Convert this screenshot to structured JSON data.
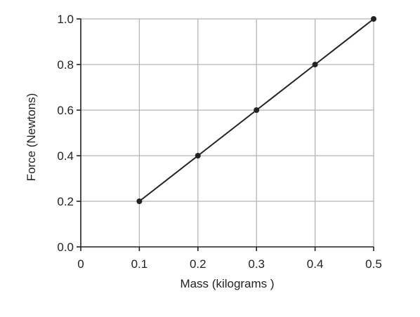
{
  "chart_data": {
    "type": "line",
    "title": "",
    "xlabel": "Mass (kilograms )",
    "ylabel": "Force (Newtons)",
    "xlim": [
      0,
      0.5
    ],
    "ylim": [
      0,
      1.0
    ],
    "x_ticks": [
      0,
      0.1,
      0.2,
      0.3,
      0.4,
      0.5
    ],
    "x_tick_labels": [
      "0",
      "0.1",
      "0.2",
      "0.3",
      "0.4",
      "0.5"
    ],
    "y_ticks": [
      0,
      0.2,
      0.4,
      0.6,
      0.8,
      1.0
    ],
    "y_tick_labels": [
      "0.0",
      "0.2",
      "0.4",
      "0.6",
      "0.8",
      "1.0"
    ],
    "grid": true,
    "series": [
      {
        "x": [
          0.1,
          0.2,
          0.3,
          0.4,
          0.5
        ],
        "y": [
          0.2,
          0.4,
          0.6,
          0.8,
          1.0
        ]
      }
    ],
    "colors": {
      "line": "#222222",
      "grid": "#b5b5b5",
      "axis": "#222222"
    }
  }
}
